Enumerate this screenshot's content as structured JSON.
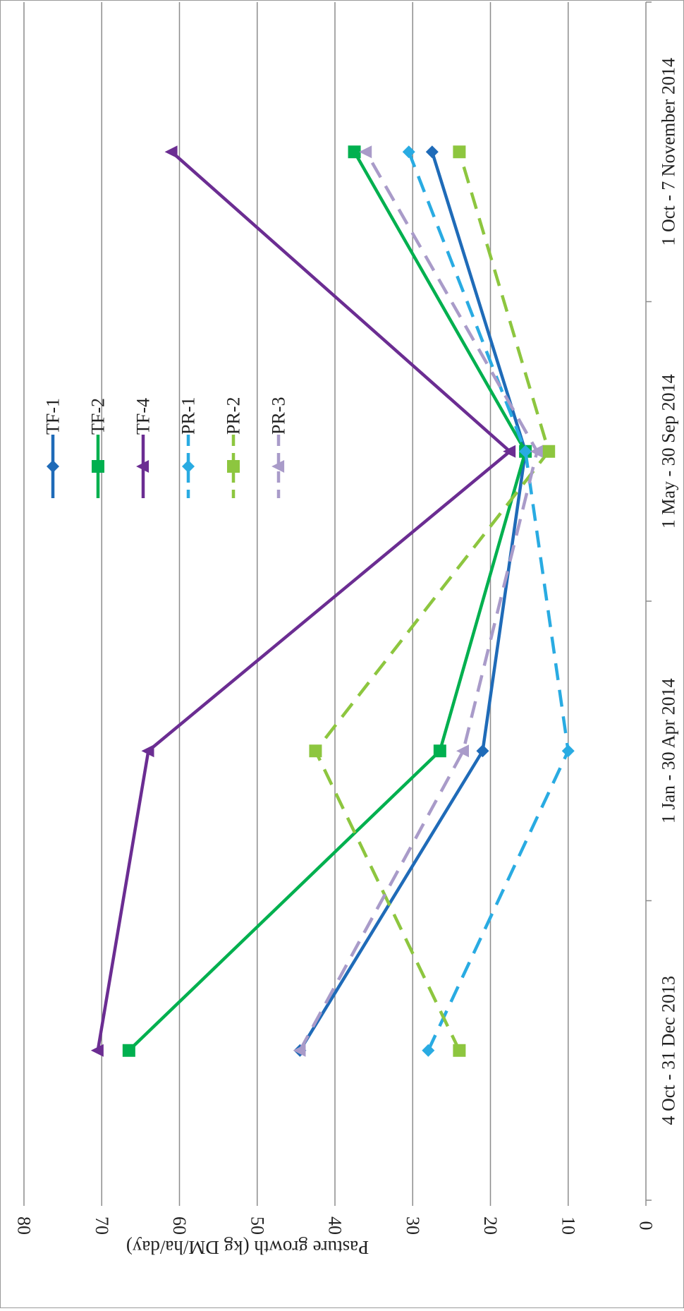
{
  "chart_data": {
    "type": "line",
    "title": "",
    "xlabel": "",
    "ylabel": "Pasture growth (kg DM/ha/day)",
    "ylim": [
      0,
      80
    ],
    "yticks": [
      0,
      10,
      20,
      30,
      40,
      50,
      60,
      70,
      80
    ],
    "grid": true,
    "orientation": "rotated 90° clockwise",
    "legend_position": "right",
    "categories": [
      "4 Oct - 31 Dec 2013",
      "1 Jan - 30 Apr 2014",
      "1 May - 30 Sep 2014",
      "1 Oct - 7 November 2014"
    ],
    "series": [
      {
        "name": "TF-1",
        "values": [
          44.5,
          21,
          15.5,
          27.5
        ],
        "color": "#1f6bb8",
        "dash": "solid",
        "marker": "diamond"
      },
      {
        "name": "TF-2",
        "values": [
          66.5,
          26.5,
          15.5,
          37.5
        ],
        "color": "#00b04f",
        "dash": "solid",
        "marker": "square"
      },
      {
        "name": "TF-4",
        "values": [
          70.5,
          64,
          17.5,
          61
        ],
        "color": "#6b2d92",
        "dash": "solid",
        "marker": "triangle"
      },
      {
        "name": "PR-1",
        "values": [
          28,
          10,
          15.5,
          30.5
        ],
        "color": "#29abe2",
        "dash": "dashed",
        "marker": "diamond"
      },
      {
        "name": "PR-2",
        "values": [
          24,
          42.5,
          12.5,
          24
        ],
        "color": "#8dc63f",
        "dash": "dashed",
        "marker": "square"
      },
      {
        "name": "PR-3",
        "values": [
          44.5,
          23.5,
          14,
          36
        ],
        "color": "#a99bc9",
        "dash": "dashed",
        "marker": "triangle"
      }
    ]
  }
}
